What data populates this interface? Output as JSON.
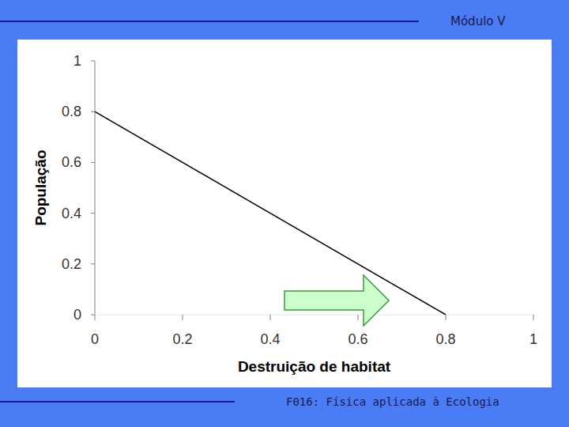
{
  "header": "Módulo V",
  "footer": "F016: Física aplicada à Ecologia",
  "chart_data": {
    "type": "line",
    "x_label": "Destruição de habitat",
    "y_label": "População",
    "x": [
      0,
      0.8
    ],
    "values": [
      0.8,
      0
    ],
    "color": "#000000",
    "xlim": [
      0,
      1
    ],
    "xticks": [
      0,
      0.2,
      0.4,
      0.6,
      0.8,
      1
    ],
    "ylim": [
      0,
      1
    ],
    "yticks": [
      0,
      0.2,
      0.4,
      0.6,
      0.8,
      1
    ],
    "grid": false
  }
}
